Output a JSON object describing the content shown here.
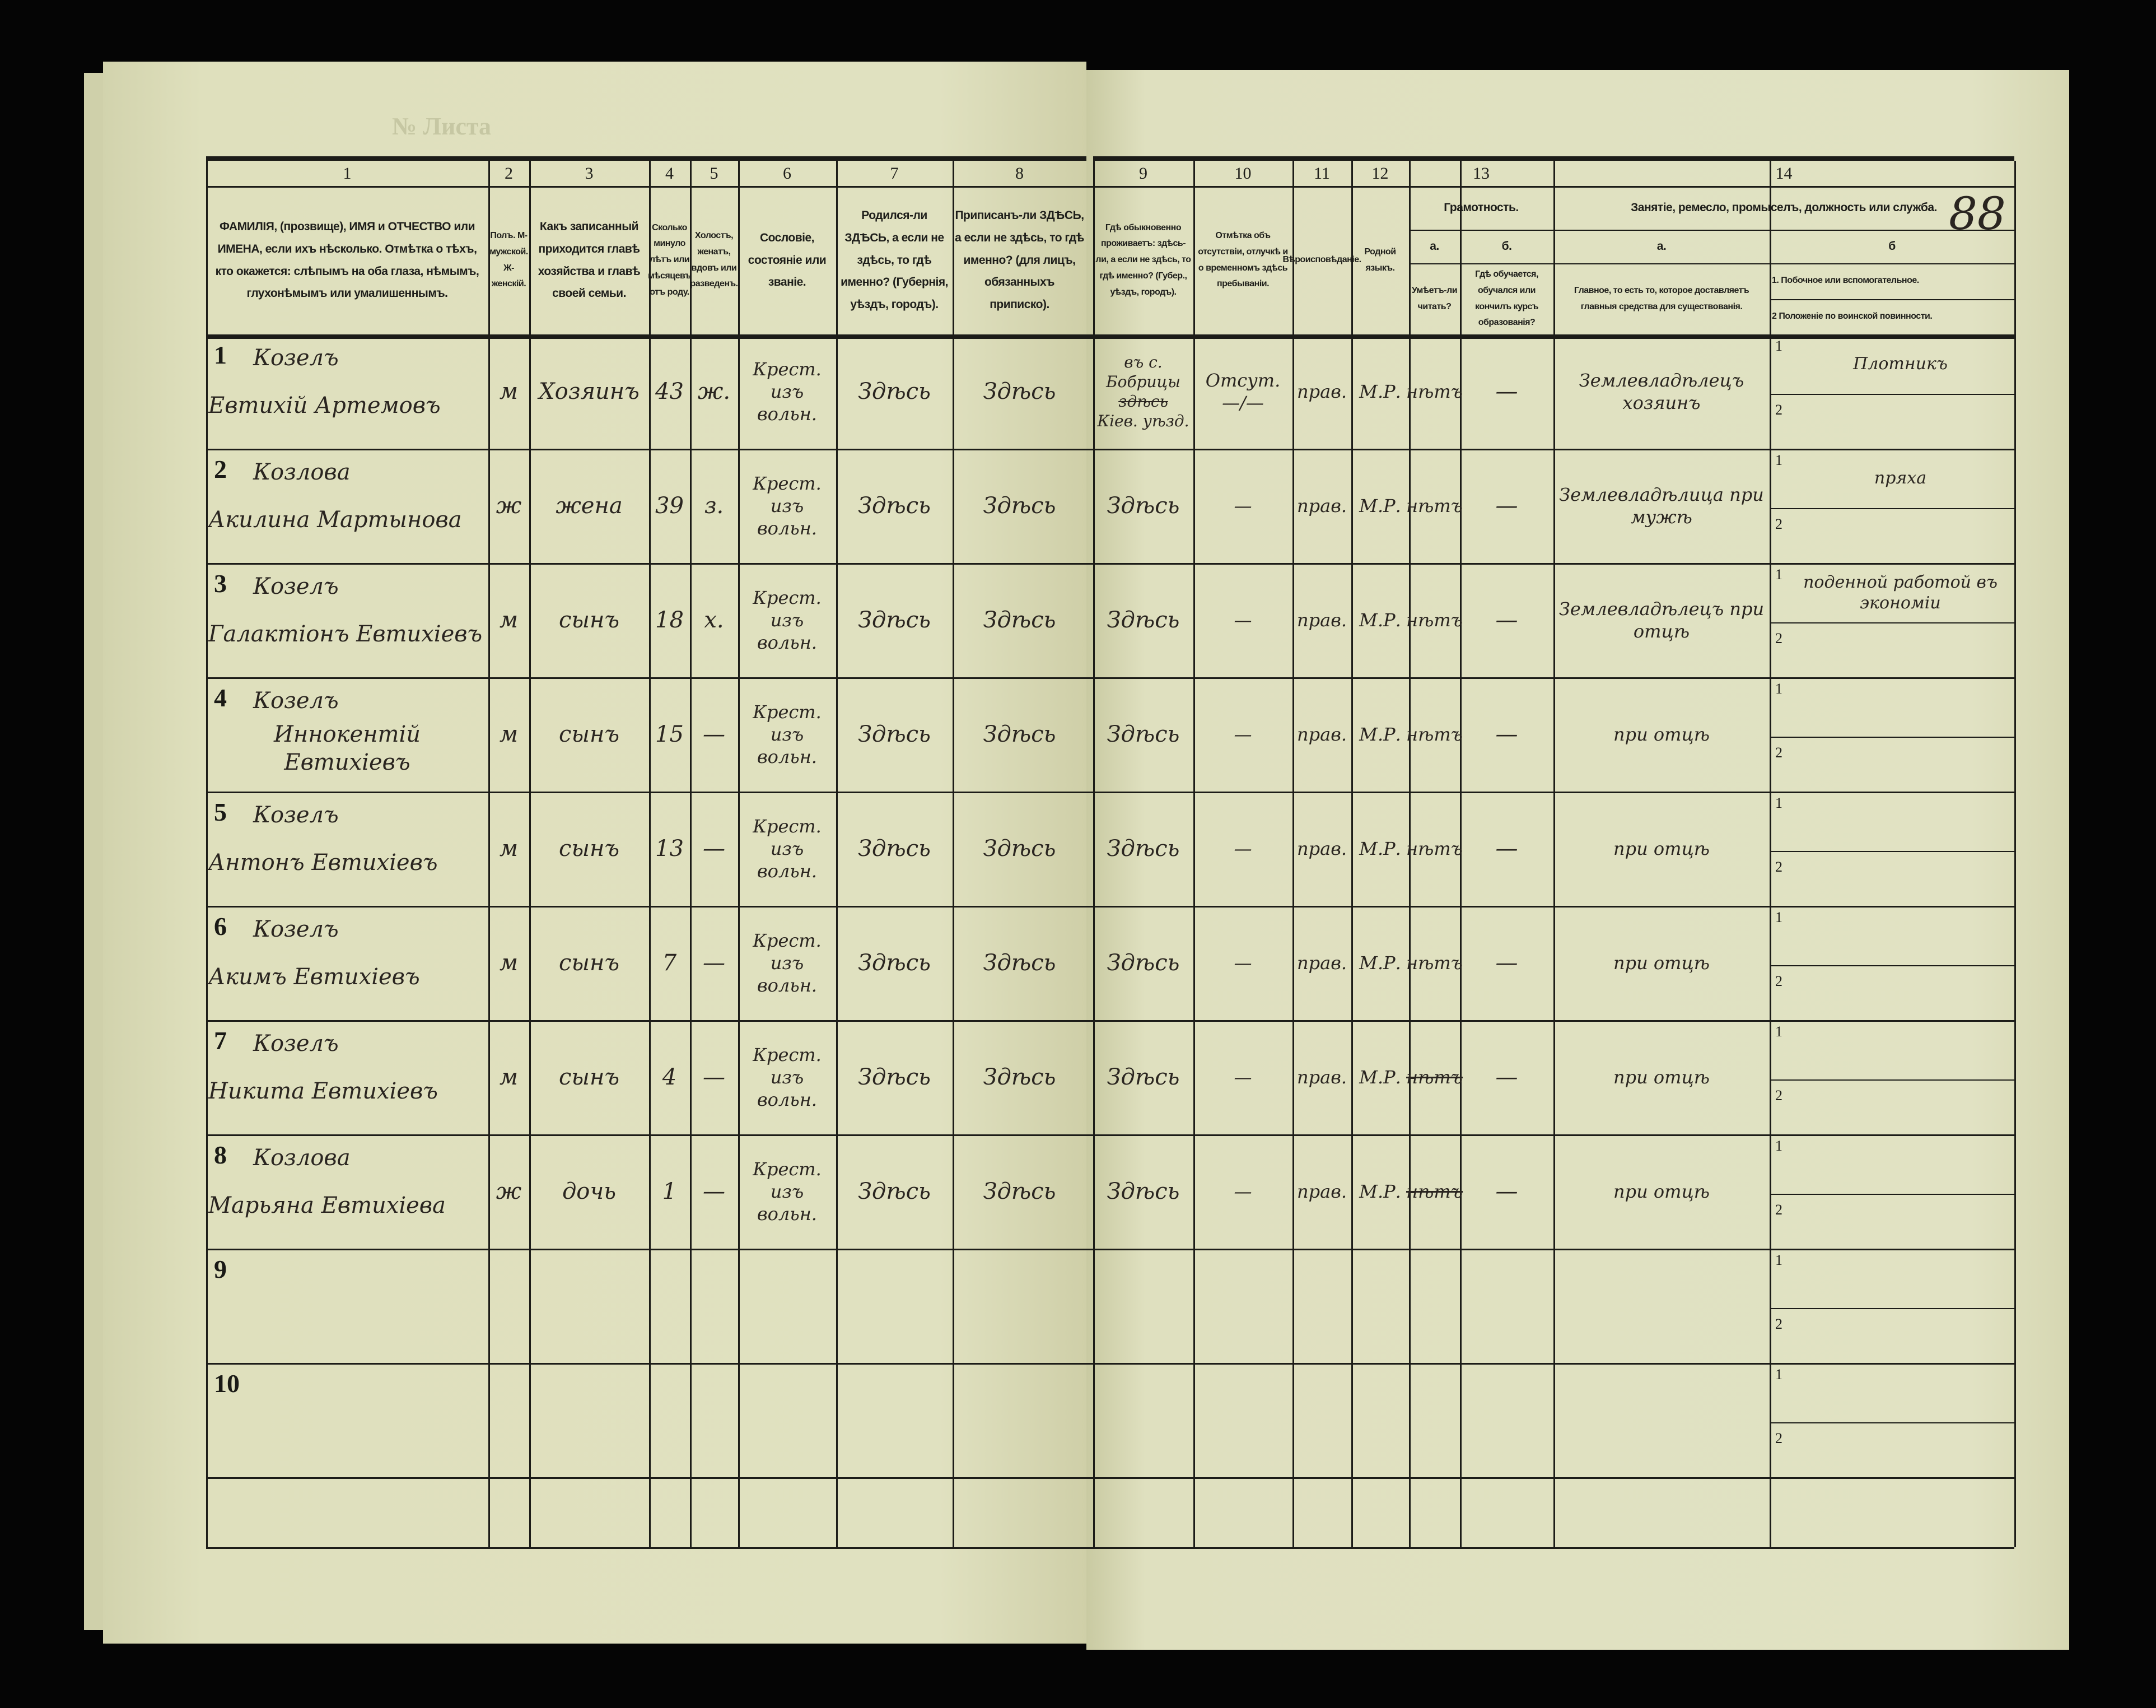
{
  "document": {
    "sheet_label": "№ Листа",
    "page_number": "88",
    "colors": {
      "paper": "#dfe0bd",
      "ink_print": "#1e1e1a",
      "ink_hand": "#2a2520",
      "background": "#050505"
    }
  },
  "header": {
    "col_numbers": [
      "1",
      "2",
      "3",
      "4",
      "5",
      "6",
      "7",
      "8",
      "9",
      "10",
      "11",
      "12",
      "13",
      "14"
    ],
    "col1": "ФАМИЛІЯ, (прозвище), ИМЯ и ОТЧЕСТВО или ИМЕНА, если ихъ нѣсколько. Отмѣтка о тѣхъ, кто окажется: слѣпымъ на оба глаза, нѣмымъ, глухонѣмымъ или умалишеннымъ.",
    "col2": "Полъ. М-мужской. Ж-женскій.",
    "col3": "Какъ записанный приходится главѣ хозяйства и главѣ своей семьи.",
    "col4": "Сколько минуло лѣтъ или мѣсяцевъ отъ роду.",
    "col5": "Холостъ, женатъ, вдовъ или разведенъ.",
    "col6": "Сословіе, состояніе или званіе.",
    "col7": "Родился-ли ЗДѢСЬ, а если не здѣсь, то гдѣ именно? (Губернія, уѣздъ, городъ).",
    "col8": "Приписанъ-ли ЗДѢСЬ, а если не здѣсь, то гдѣ именно? (для лицъ, обязанныхъ приписко).",
    "col9": "Гдѣ обыкновенно проживаетъ: здѣсь-ли, а если не здѣсь, то гдѣ именно? (Губер., уѣздъ, городъ).",
    "col10": "Отмѣтка объ отсутствіи, отлучкѣ и о временномъ здѣсь пребываніи.",
    "col11": "Вѣроисповѣданіе.",
    "col12": "Родной языкъ.",
    "col13_title": "Грамотность.",
    "col13a_letter": "а.",
    "col13a": "Умѣетъ-ли читать?",
    "col13b_letter": "б.",
    "col13b": "Гдѣ обучается, обучался или кончилъ курсъ образованія?",
    "col14_title": "Занятіе, ремесло, промыселъ, должность или служба.",
    "col14a_letter": "а.",
    "col14a": "Главное, то есть то, которое доставляетъ главныя средства для существованія.",
    "col14b_letter": "б",
    "col14b_1": "1. Побочное или вспомогательное.",
    "col14b_2": "2 Положеніе по воинской повинности."
  },
  "sub_labels": {
    "one": "1",
    "two": "2"
  },
  "rows": [
    {
      "num": "1",
      "surname": "Козелъ",
      "name": "Евтихій Артемовъ",
      "sex": "м",
      "relation": "Хозяинъ",
      "age": "43",
      "marital": "ж.",
      "estate": "Крест. изъ вольн.",
      "born": "Здѣсь",
      "registered": "Здѣсь",
      "residence": "въ с. Бобрицы",
      "residence_struck": "здѣсь",
      "residence_2": "Кiев. уѣзд.",
      "absence": "Отсут. —/—",
      "religion": "прав.",
      "language": "М.Р.",
      "lit_read": "нѣтъ",
      "lit_school": "—",
      "occ_main": "Землевладѣлецъ хозяинъ",
      "occ_side": "Плотникъ"
    },
    {
      "num": "2",
      "surname": "Козлова",
      "name": "Акилина Мартынова",
      "sex": "ж",
      "relation": "жена",
      "age": "39",
      "marital": "з.",
      "estate": "Крест. изъ вольн.",
      "born": "Здѣсь",
      "registered": "Здѣсь",
      "residence": "Здѣсь",
      "absence": "—",
      "religion": "прав.",
      "language": "М.Р.",
      "lit_read": "нѣтъ",
      "lit_school": "—",
      "occ_main": "Землевладѣлица при мужѣ",
      "occ_side": "пряха"
    },
    {
      "num": "3",
      "surname": "Козелъ",
      "name": "Галактіонъ Евтихіевъ",
      "sex": "м",
      "relation": "сынъ",
      "age": "18",
      "marital": "х.",
      "estate": "Крест. изъ вольн.",
      "born": "Здѣсь",
      "registered": "Здѣсь",
      "residence": "Здѣсь",
      "absence": "—",
      "religion": "прав.",
      "language": "М.Р.",
      "lit_read": "нѣтъ",
      "lit_school": "—",
      "occ_main": "Землевладѣлецъ при отцѣ",
      "occ_side": "поденной работой въ экономіи"
    },
    {
      "num": "4",
      "surname": "Козелъ",
      "name": "Иннокентій Евтихіевъ",
      "sex": "м",
      "relation": "сынъ",
      "age": "15",
      "marital": "—",
      "estate": "Крест. изъ вольн.",
      "born": "Здѣсь",
      "registered": "Здѣсь",
      "residence": "Здѣсь",
      "absence": "—",
      "religion": "прав.",
      "language": "М.Р.",
      "lit_read": "нѣтъ",
      "lit_school": "—",
      "occ_main": "при отцѣ",
      "occ_side": ""
    },
    {
      "num": "5",
      "surname": "Козелъ",
      "name": "Антонъ Евтихіевъ",
      "sex": "м",
      "relation": "сынъ",
      "age": "13",
      "marital": "—",
      "estate": "Крест. изъ вольн.",
      "born": "Здѣсь",
      "registered": "Здѣсь",
      "residence": "Здѣсь",
      "absence": "—",
      "religion": "прав.",
      "language": "М.Р.",
      "lit_read": "нѣтъ",
      "lit_school": "—",
      "occ_main": "при отцѣ",
      "occ_side": ""
    },
    {
      "num": "6",
      "surname": "Козелъ",
      "name": "Акимъ Евтихіевъ",
      "sex": "м",
      "relation": "сынъ",
      "age": "7",
      "marital": "—",
      "estate": "Крест. изъ вольн.",
      "born": "Здѣсь",
      "registered": "Здѣсь",
      "residence": "Здѣсь",
      "absence": "—",
      "religion": "прав.",
      "language": "М.Р.",
      "lit_read": "нѣтъ",
      "lit_school": "—",
      "occ_main": "при отцѣ",
      "occ_side": ""
    },
    {
      "num": "7",
      "surname": "Козелъ",
      "name": "Никита Евтихіевъ",
      "sex": "м",
      "relation": "сынъ",
      "age": "4",
      "marital": "—",
      "estate": "Крест. изъ вольн.",
      "born": "Здѣсь",
      "registered": "Здѣсь",
      "residence": "Здѣсь",
      "absence": "—",
      "religion": "прав.",
      "language": "М.Р.",
      "lit_read": "нѣтъ",
      "lit_read_struck": true,
      "lit_school": "—",
      "occ_main": "при отцѣ",
      "occ_side": ""
    },
    {
      "num": "8",
      "surname": "Козлова",
      "name": "Марьяна Евтихіева",
      "sex": "ж",
      "relation": "дочь",
      "age": "1",
      "marital": "—",
      "estate": "Крест. изъ вольн.",
      "born": "Здѣсь",
      "registered": "Здѣсь",
      "residence": "Здѣсь",
      "absence": "—",
      "religion": "прав.",
      "language": "М.Р.",
      "lit_read": "нѣтъ",
      "lit_read_struck": true,
      "lit_school": "—",
      "occ_main": "при отцѣ",
      "occ_side": ""
    },
    {
      "num": "9"
    },
    {
      "num": "10"
    }
  ]
}
